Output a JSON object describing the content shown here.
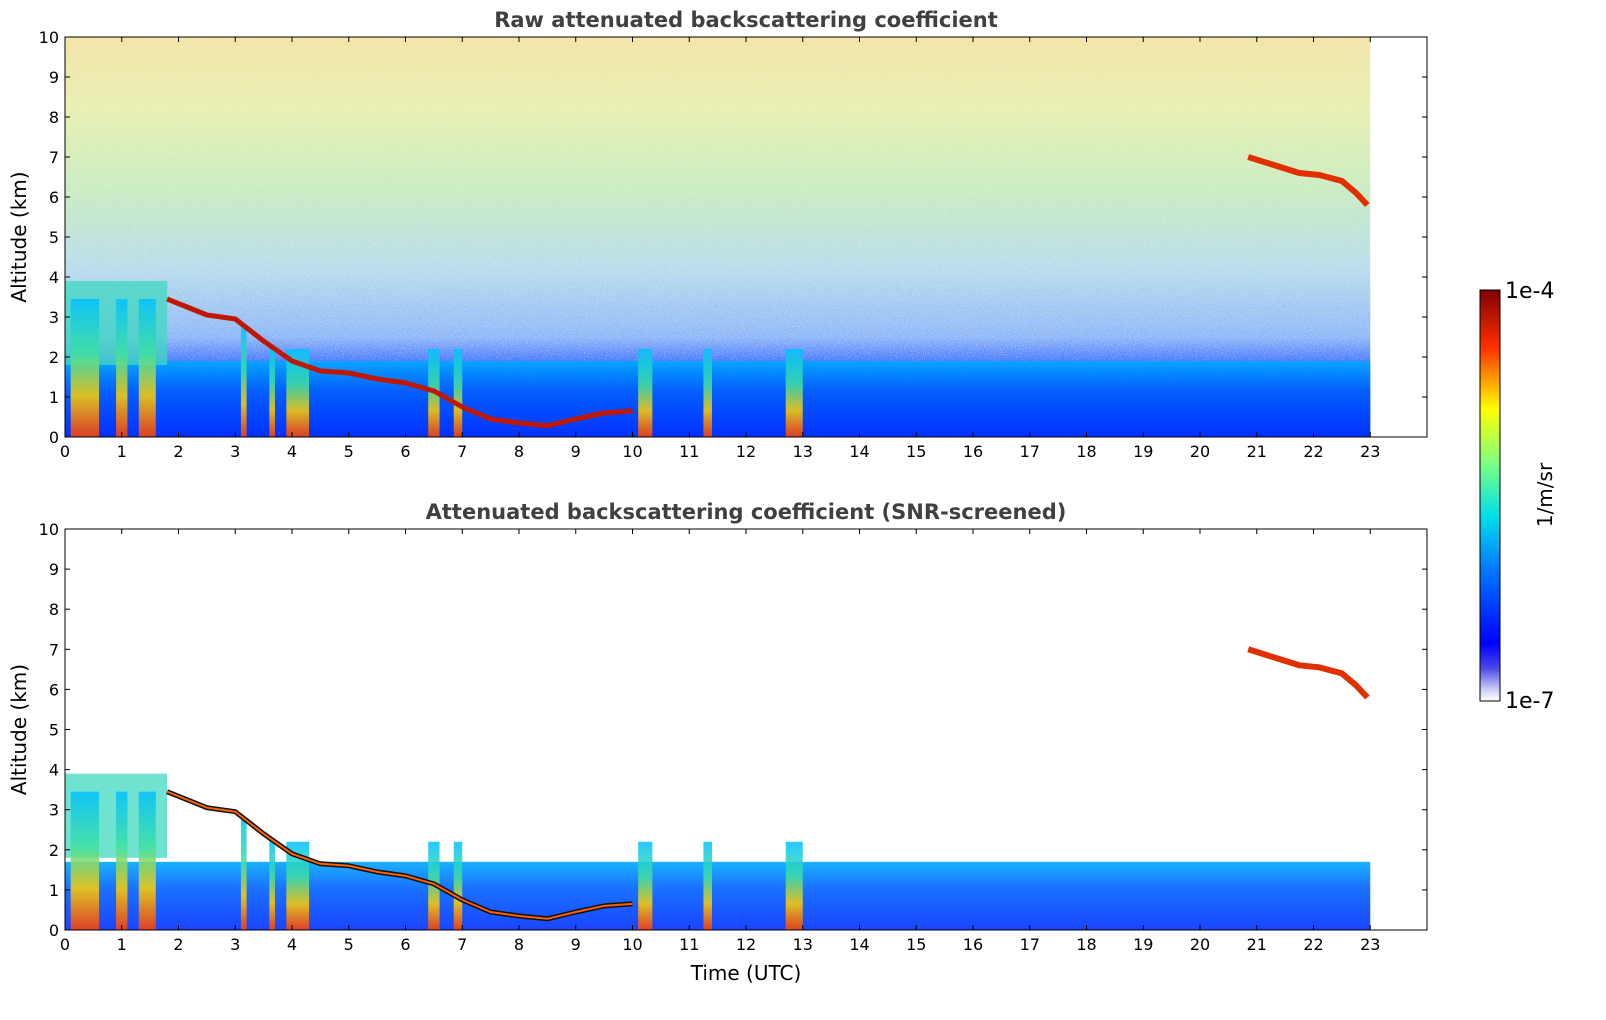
{
  "chart_data": [
    {
      "type": "heatmap",
      "title": "Raw attenuated backscattering coefficient",
      "xlabel": "",
      "ylabel": "Altitude (km)",
      "xlim": [
        0,
        24
      ],
      "ylim": [
        0,
        10
      ],
      "x_ticks": [
        0,
        1,
        2,
        3,
        4,
        5,
        6,
        7,
        8,
        9,
        10,
        11,
        12,
        13,
        14,
        15,
        16,
        17,
        18,
        19,
        20,
        21,
        22,
        23
      ],
      "y_ticks": [
        0,
        1,
        2,
        3,
        4,
        5,
        6,
        7,
        8,
        9,
        10
      ],
      "data_end_time": 23,
      "grid": false,
      "screened": false
    },
    {
      "type": "heatmap",
      "title": "Attenuated backscattering coefficient (SNR-screened)",
      "xlabel": "Time (UTC)",
      "ylabel": "Altitude (km)",
      "xlim": [
        0,
        24
      ],
      "ylim": [
        0,
        10
      ],
      "x_ticks": [
        0,
        1,
        2,
        3,
        4,
        5,
        6,
        7,
        8,
        9,
        10,
        11,
        12,
        13,
        14,
        15,
        16,
        17,
        18,
        19,
        20,
        21,
        22,
        23
      ],
      "y_ticks": [
        0,
        1,
        2,
        3,
        4,
        5,
        6,
        7,
        8,
        9,
        10
      ],
      "data_end_time": 23,
      "grid": false,
      "screened": true
    }
  ],
  "colorbar": {
    "label": "1/m/sr",
    "max_label": "1e-4",
    "min_label": "1e-7",
    "colormap": "jet",
    "scale": "log"
  },
  "features": {
    "cloud_layer": [
      [
        1.8,
        3.45
      ],
      [
        2.5,
        3.05
      ],
      [
        3.0,
        2.95
      ],
      [
        3.5,
        2.4
      ],
      [
        4.0,
        1.9
      ],
      [
        4.5,
        1.65
      ],
      [
        5.0,
        1.6
      ],
      [
        5.5,
        1.45
      ],
      [
        6.0,
        1.35
      ],
      [
        6.5,
        1.15
      ],
      [
        7.0,
        0.75
      ],
      [
        7.5,
        0.45
      ],
      [
        8.0,
        0.35
      ],
      [
        8.5,
        0.28
      ],
      [
        9.0,
        0.45
      ],
      [
        9.5,
        0.6
      ],
      [
        10.0,
        0.65
      ]
    ],
    "high_cloud_points": [
      [
        20.85,
        7.0
      ],
      [
        21.75,
        6.6
      ],
      [
        22.1,
        6.55
      ],
      [
        22.5,
        6.4
      ],
      [
        22.75,
        6.1
      ],
      [
        22.95,
        5.8
      ]
    ],
    "vertical_streaks": [
      [
        0.1,
        0.6
      ],
      [
        0.9,
        1.1
      ],
      [
        1.3,
        1.6
      ],
      [
        3.1,
        3.2
      ],
      [
        3.6,
        3.7
      ],
      [
        3.9,
        4.3
      ],
      [
        6.4,
        6.6
      ],
      [
        6.85,
        7.0
      ],
      [
        10.1,
        10.35
      ],
      [
        11.25,
        11.4
      ],
      [
        12.7,
        13.0
      ]
    ]
  }
}
